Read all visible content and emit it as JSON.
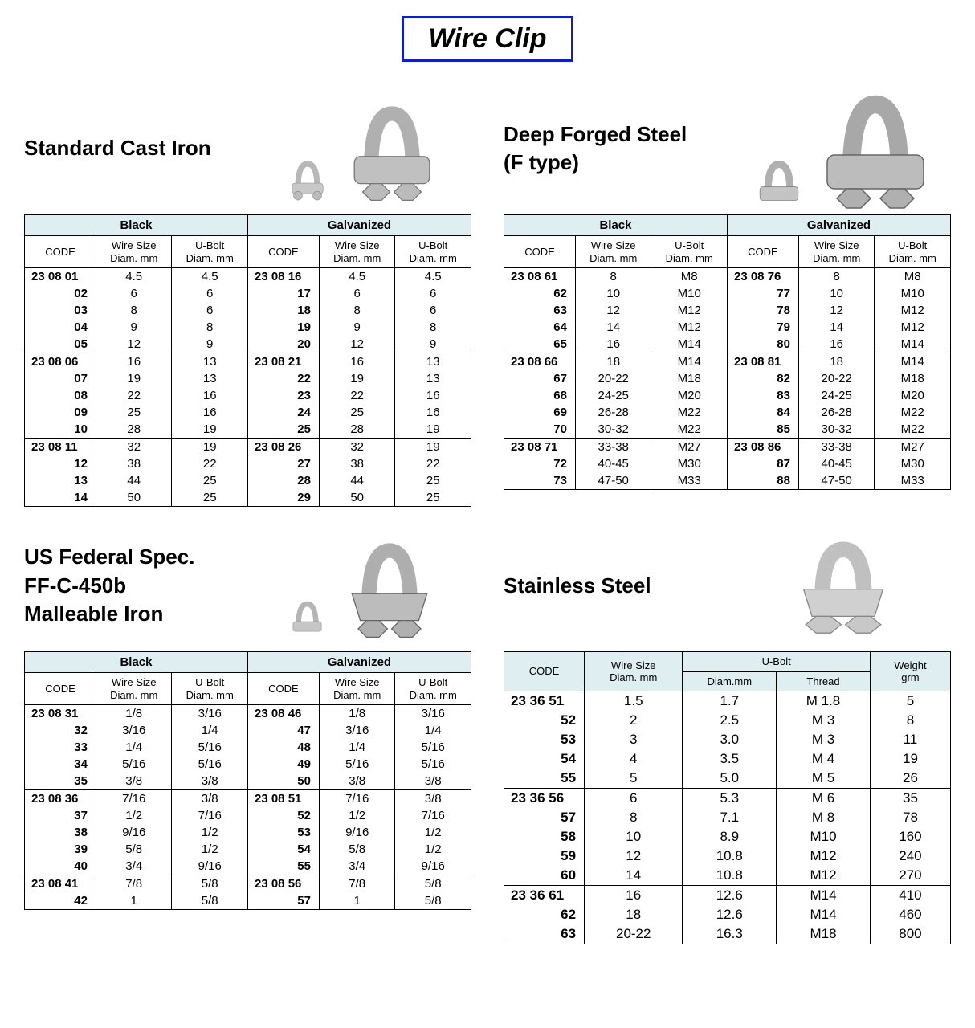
{
  "page_title": "Wire Clip",
  "styling": {
    "title_border_color": "#1020c0",
    "header_bg": "#dfeff1",
    "border_color": "#000000",
    "font_family": "Arial",
    "body_font_size_pt": 11,
    "title_font_size_pt": 26
  },
  "labels": {
    "black": "Black",
    "galvanized": "Galvanized",
    "code": "CODE",
    "wire_size": "Wire Size",
    "diam_mm": "Diam. mm",
    "ubolt": "U-Bolt",
    "ubolt_diam_mm": "Diam.mm",
    "thread": "Thread",
    "weight": "Weight",
    "grm": "grm"
  },
  "sections": {
    "cast_iron": {
      "title": "Standard Cast Iron",
      "groups": [
        [
          {
            "bc": "23 08 01",
            "bw": "4.5",
            "bu": "4.5",
            "gc": "23 08 16",
            "gw": "4.5",
            "gu": "4.5"
          },
          {
            "bc": "02",
            "bw": "6",
            "bu": "6",
            "gc": "17",
            "gw": "6",
            "gu": "6"
          },
          {
            "bc": "03",
            "bw": "8",
            "bu": "6",
            "gc": "18",
            "gw": "8",
            "gu": "6"
          },
          {
            "bc": "04",
            "bw": "9",
            "bu": "8",
            "gc": "19",
            "gw": "9",
            "gu": "8"
          },
          {
            "bc": "05",
            "bw": "12",
            "bu": "9",
            "gc": "20",
            "gw": "12",
            "gu": "9"
          }
        ],
        [
          {
            "bc": "23 08 06",
            "bw": "16",
            "bu": "13",
            "gc": "23 08 21",
            "gw": "16",
            "gu": "13"
          },
          {
            "bc": "07",
            "bw": "19",
            "bu": "13",
            "gc": "22",
            "gw": "19",
            "gu": "13"
          },
          {
            "bc": "08",
            "bw": "22",
            "bu": "16",
            "gc": "23",
            "gw": "22",
            "gu": "16"
          },
          {
            "bc": "09",
            "bw": "25",
            "bu": "16",
            "gc": "24",
            "gw": "25",
            "gu": "16"
          },
          {
            "bc": "10",
            "bw": "28",
            "bu": "19",
            "gc": "25",
            "gw": "28",
            "gu": "19"
          }
        ],
        [
          {
            "bc": "23 08 11",
            "bw": "32",
            "bu": "19",
            "gc": "23 08 26",
            "gw": "32",
            "gu": "19"
          },
          {
            "bc": "12",
            "bw": "38",
            "bu": "22",
            "gc": "27",
            "gw": "38",
            "gu": "22"
          },
          {
            "bc": "13",
            "bw": "44",
            "bu": "25",
            "gc": "28",
            "gw": "44",
            "gu": "25"
          },
          {
            "bc": "14",
            "bw": "50",
            "bu": "25",
            "gc": "29",
            "gw": "50",
            "gu": "25"
          }
        ]
      ]
    },
    "forged_steel": {
      "title": "Deep Forged Steel",
      "subtitle": "(F type)",
      "groups": [
        [
          {
            "bc": "23 08 61",
            "bw": "8",
            "bu": "M8",
            "gc": "23 08 76",
            "gw": "8",
            "gu": "M8"
          },
          {
            "bc": "62",
            "bw": "10",
            "bu": "M10",
            "gc": "77",
            "gw": "10",
            "gu": "M10"
          },
          {
            "bc": "63",
            "bw": "12",
            "bu": "M12",
            "gc": "78",
            "gw": "12",
            "gu": "M12"
          },
          {
            "bc": "64",
            "bw": "14",
            "bu": "M12",
            "gc": "79",
            "gw": "14",
            "gu": "M12"
          },
          {
            "bc": "65",
            "bw": "16",
            "bu": "M14",
            "gc": "80",
            "gw": "16",
            "gu": "M14"
          }
        ],
        [
          {
            "bc": "23 08 66",
            "bw": "18",
            "bu": "M14",
            "gc": "23 08 81",
            "gw": "18",
            "gu": "M14"
          },
          {
            "bc": "67",
            "bw": "20-22",
            "bu": "M18",
            "gc": "82",
            "gw": "20-22",
            "gu": "M18"
          },
          {
            "bc": "68",
            "bw": "24-25",
            "bu": "M20",
            "gc": "83",
            "gw": "24-25",
            "gu": "M20"
          },
          {
            "bc": "69",
            "bw": "26-28",
            "bu": "M22",
            "gc": "84",
            "gw": "26-28",
            "gu": "M22"
          },
          {
            "bc": "70",
            "bw": "30-32",
            "bu": "M22",
            "gc": "85",
            "gw": "30-32",
            "gu": "M22"
          }
        ],
        [
          {
            "bc": "23 08 71",
            "bw": "33-38",
            "bu": "M27",
            "gc": "23 08 86",
            "gw": "33-38",
            "gu": "M27"
          },
          {
            "bc": "72",
            "bw": "40-45",
            "bu": "M30",
            "gc": "87",
            "gw": "40-45",
            "gu": "M30"
          },
          {
            "bc": "73",
            "bw": "47-50",
            "bu": "M33",
            "gc": "88",
            "gw": "47-50",
            "gu": "M33"
          }
        ]
      ]
    },
    "malleable": {
      "title_l1": "US Federal Spec.",
      "title_l2": "FF-C-450b",
      "title_l3": "Malleable Iron",
      "groups": [
        [
          {
            "bc": "23 08 31",
            "bw": "1/8",
            "bu": "3/16",
            "gc": "23 08 46",
            "gw": "1/8",
            "gu": "3/16"
          },
          {
            "bc": "32",
            "bw": "3/16",
            "bu": "1/4",
            "gc": "47",
            "gw": "3/16",
            "gu": "1/4"
          },
          {
            "bc": "33",
            "bw": "1/4",
            "bu": "5/16",
            "gc": "48",
            "gw": "1/4",
            "gu": "5/16"
          },
          {
            "bc": "34",
            "bw": "5/16",
            "bu": "5/16",
            "gc": "49",
            "gw": "5/16",
            "gu": "5/16"
          },
          {
            "bc": "35",
            "bw": "3/8",
            "bu": "3/8",
            "gc": "50",
            "gw": "3/8",
            "gu": "3/8"
          }
        ],
        [
          {
            "bc": "23 08 36",
            "bw": "7/16",
            "bu": "3/8",
            "gc": "23 08 51",
            "gw": "7/16",
            "gu": "3/8"
          },
          {
            "bc": "37",
            "bw": "1/2",
            "bu": "7/16",
            "gc": "52",
            "gw": "1/2",
            "gu": "7/16"
          },
          {
            "bc": "38",
            "bw": "9/16",
            "bu": "1/2",
            "gc": "53",
            "gw": "9/16",
            "gu": "1/2"
          },
          {
            "bc": "39",
            "bw": "5/8",
            "bu": "1/2",
            "gc": "54",
            "gw": "5/8",
            "gu": "1/2"
          },
          {
            "bc": "40",
            "bw": "3/4",
            "bu": "9/16",
            "gc": "55",
            "gw": "3/4",
            "gu": "9/16"
          }
        ],
        [
          {
            "bc": "23 08 41",
            "bw": "7/8",
            "bu": "5/8",
            "gc": "23 08 56",
            "gw": "7/8",
            "gu": "5/8"
          },
          {
            "bc": "42",
            "bw": "1",
            "bu": "5/8",
            "gc": "57",
            "gw": "1",
            "gu": "5/8"
          }
        ]
      ]
    },
    "stainless": {
      "title": "Stainless Steel",
      "groups": [
        [
          {
            "c": "23 36 51",
            "w": "1.5",
            "d": "1.7",
            "t": "M  1.8",
            "g": "5"
          },
          {
            "c": "52",
            "w": "2",
            "d": "2.5",
            "t": "M  3",
            "g": "8"
          },
          {
            "c": "53",
            "w": "3",
            "d": "3.0",
            "t": "M  3",
            "g": "11"
          },
          {
            "c": "54",
            "w": "4",
            "d": "3.5",
            "t": "M  4",
            "g": "19"
          },
          {
            "c": "55",
            "w": "5",
            "d": "5.0",
            "t": "M  5",
            "g": "26"
          }
        ],
        [
          {
            "c": "23 36 56",
            "w": "6",
            "d": "5.3",
            "t": "M  6",
            "g": "35"
          },
          {
            "c": "57",
            "w": "8",
            "d": "7.1",
            "t": "M  8",
            "g": "78"
          },
          {
            "c": "58",
            "w": "10",
            "d": "8.9",
            "t": "M10",
            "g": "160"
          },
          {
            "c": "59",
            "w": "12",
            "d": "10.8",
            "t": "M12",
            "g": "240"
          },
          {
            "c": "60",
            "w": "14",
            "d": "10.8",
            "t": "M12",
            "g": "270"
          }
        ],
        [
          {
            "c": "23 36 61",
            "w": "16",
            "d": "12.6",
            "t": "M14",
            "g": "410"
          },
          {
            "c": "62",
            "w": "18",
            "d": "12.6",
            "t": "M14",
            "g": "460"
          },
          {
            "c": "63",
            "w": "20-22",
            "d": "16.3",
            "t": "M18",
            "g": "800"
          }
        ]
      ]
    }
  }
}
